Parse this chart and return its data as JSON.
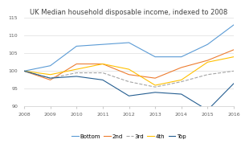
{
  "title": "UK Median household disposable income, indexed to 2008",
  "years": [
    2008,
    2009,
    2010,
    2011,
    2012,
    2013,
    2014,
    2015,
    2016
  ],
  "series": {
    "Bottom": [
      100,
      101.5,
      107,
      107.5,
      108,
      104,
      104,
      107.5,
      113
    ],
    "2nd": [
      100,
      97.5,
      102,
      102,
      99,
      98,
      101,
      103,
      106
    ],
    "3rd": [
      100,
      98,
      99.5,
      99.5,
      97,
      95.5,
      97,
      99,
      100
    ],
    "4th": [
      100,
      99,
      100.5,
      102,
      100.5,
      96,
      97.5,
      102.5,
      104
    ],
    "Top": [
      100,
      98,
      98.5,
      97.5,
      93,
      94,
      93.5,
      89,
      96.5
    ]
  },
  "colors": {
    "Bottom": "#5B9BD5",
    "2nd": "#ED7D31",
    "3rd": "#A5A5A5",
    "4th": "#FFC000",
    "Top": "#255E91"
  },
  "line_styles": {
    "Bottom": "-",
    "2nd": "-",
    "3rd": "--",
    "4th": "-",
    "Top": "-"
  },
  "ylim": [
    90,
    115
  ],
  "yticks": [
    90,
    95,
    100,
    105,
    110,
    115
  ],
  "background": "#FFFFFF",
  "title_fontsize": 6.0,
  "legend_fontsize": 5.0,
  "tick_fontsize": 4.5
}
